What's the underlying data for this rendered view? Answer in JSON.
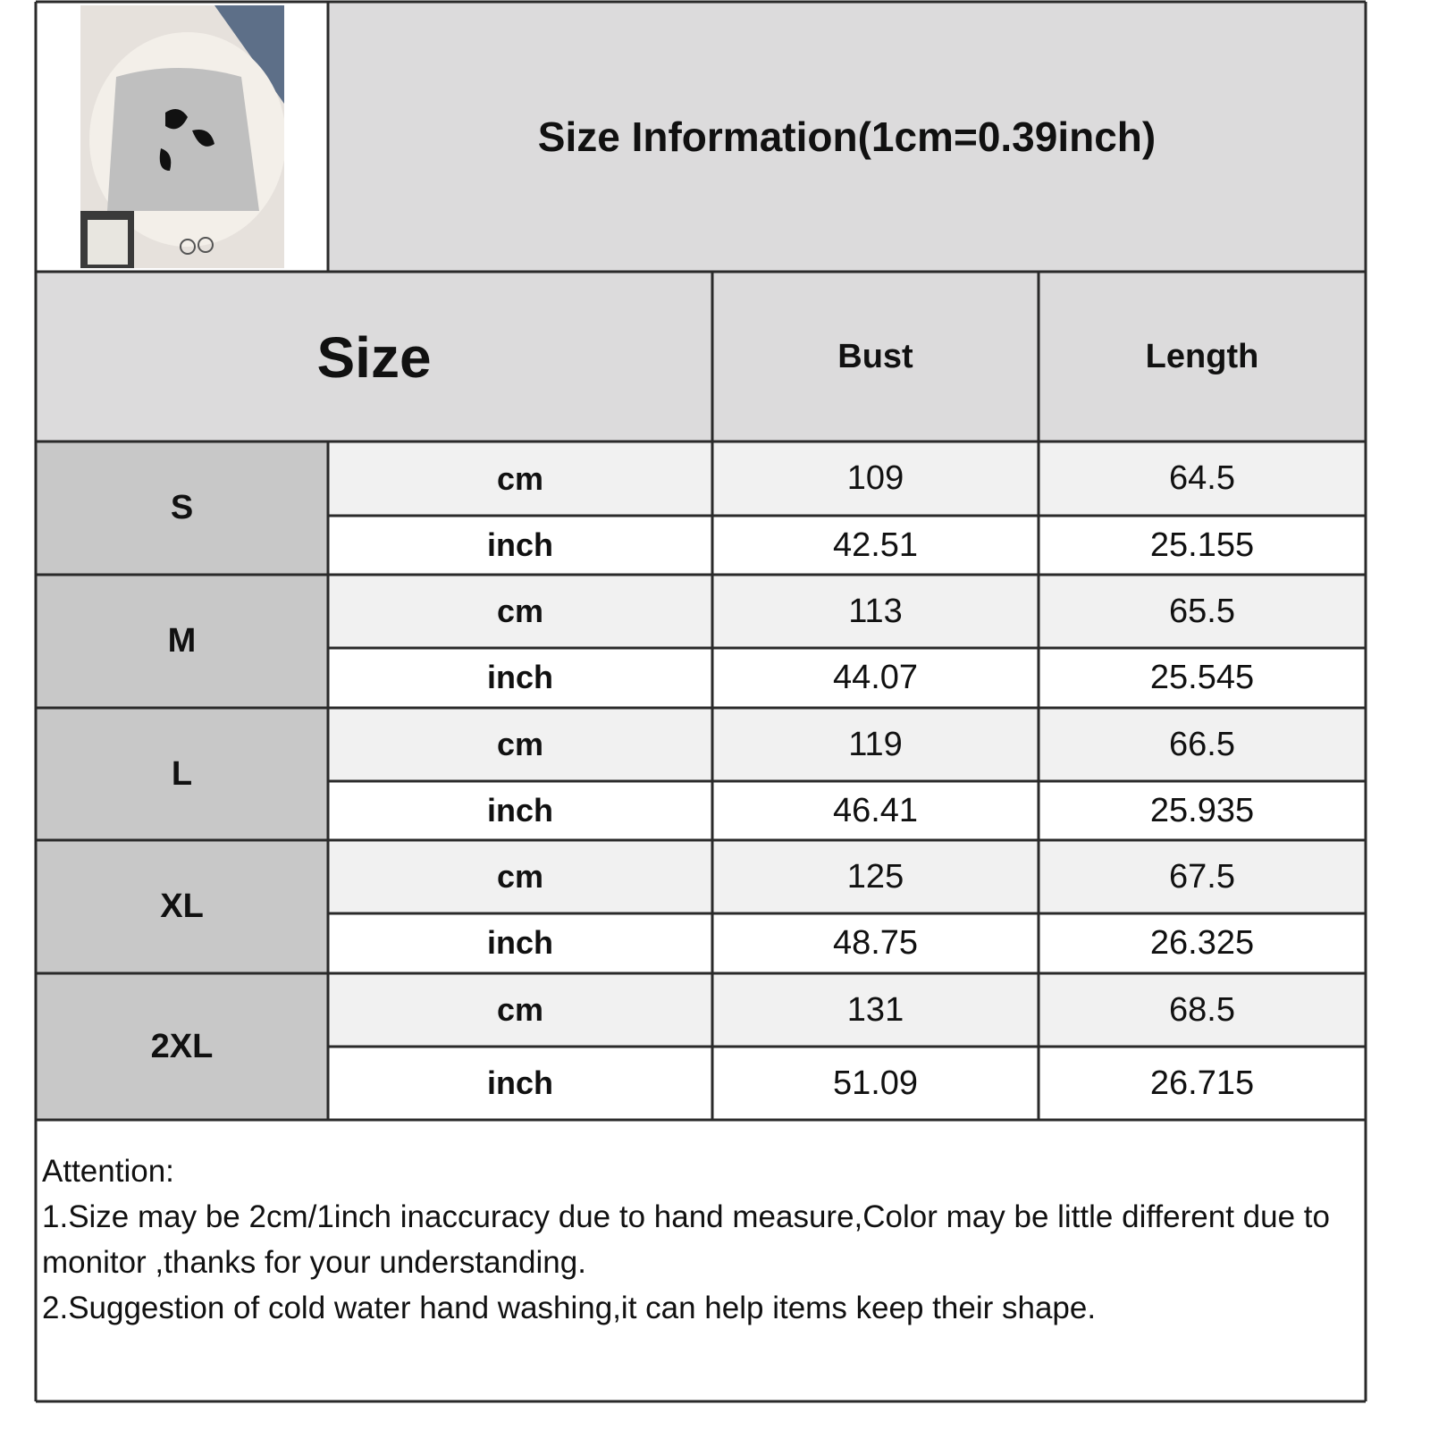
{
  "title": "Size Information(1cm=0.39inch)",
  "photo": {
    "alt": "grey sweatshirt with black cat print"
  },
  "headers": {
    "size": "Size",
    "bust": "Bust",
    "length": "Length"
  },
  "units": {
    "cm": "cm",
    "inch": "inch"
  },
  "rows": [
    {
      "size": "S",
      "bust_cm": "109",
      "length_cm": "64.5",
      "bust_inch": "42.51",
      "length_inch": "25.155"
    },
    {
      "size": "M",
      "bust_cm": "113",
      "length_cm": "65.5",
      "bust_inch": "44.07",
      "length_inch": "25.545"
    },
    {
      "size": "L",
      "bust_cm": "119",
      "length_cm": "66.5",
      "bust_inch": "46.41",
      "length_inch": "25.935"
    },
    {
      "size": "XL",
      "bust_cm": "125",
      "length_cm": "67.5",
      "bust_inch": "48.75",
      "length_inch": "26.325"
    },
    {
      "size": "2XL",
      "bust_cm": "131",
      "length_cm": "68.5",
      "bust_inch": "51.09",
      "length_inch": "26.715"
    }
  ],
  "notes": {
    "heading": "Attention:",
    "line1": "1.Size may be 2cm/1inch inaccuracy due to hand measure,Color may be little different due to monitor ,thanks for your understanding.",
    "line2": "2.Suggestion of cold water hand washing,it can help items keep their shape."
  }
}
